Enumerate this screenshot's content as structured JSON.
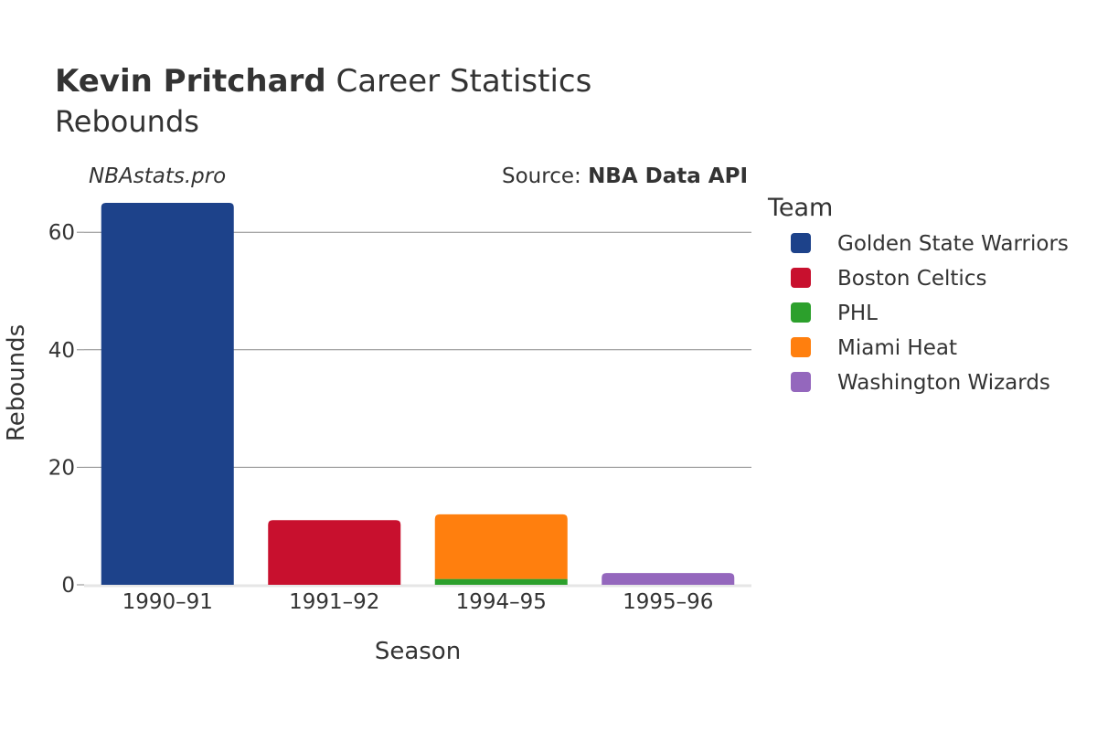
{
  "header": {
    "title_bold": "Kevin Pritchard",
    "title_rest": " Career Statistics",
    "subtitle": "Rebounds",
    "watermark": "NBAstats.pro",
    "source_prefix": "Source: ",
    "source_name": "NBA Data API"
  },
  "chart_data": {
    "type": "bar",
    "stacked": true,
    "categories": [
      "1990–91",
      "1991–92",
      "1994–95",
      "1995–96"
    ],
    "xlabel": "Season",
    "ylabel": "Rebounds",
    "ylim": [
      0,
      68
    ],
    "yticks": [
      0,
      20,
      40,
      60
    ],
    "grid": true,
    "legend": {
      "title": "Team",
      "placement": "right"
    },
    "series": [
      {
        "name": "Golden State Warriors",
        "color": "#1d428a",
        "values": [
          65,
          0,
          0,
          0
        ]
      },
      {
        "name": "Boston Celtics",
        "color": "#c8102e",
        "values": [
          0,
          11,
          0,
          0
        ]
      },
      {
        "name": "PHL",
        "color": "#2ca02c",
        "values": [
          0,
          0,
          1,
          0
        ]
      },
      {
        "name": "Miami Heat",
        "color": "#ff7f0e",
        "values": [
          0,
          0,
          11,
          0
        ]
      },
      {
        "name": "Washington Wizards",
        "color": "#9467bd",
        "values": [
          0,
          0,
          0,
          2
        ]
      }
    ]
  }
}
